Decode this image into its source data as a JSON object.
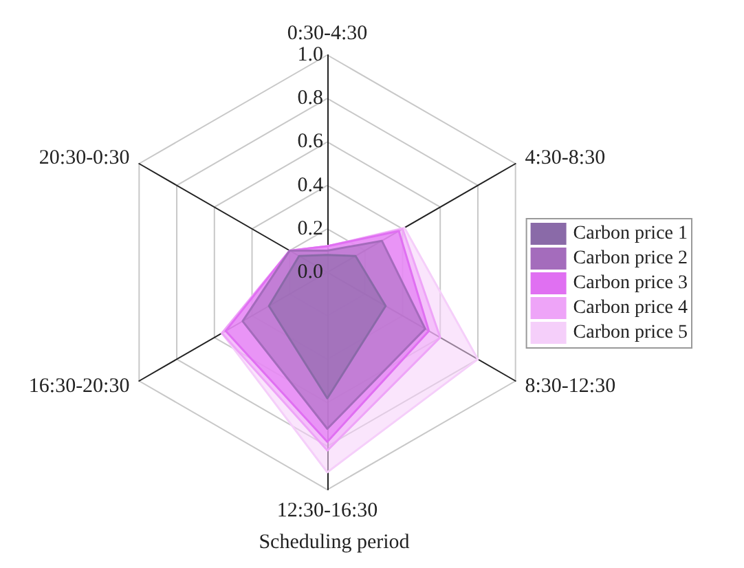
{
  "chart_data": {
    "type": "radar",
    "xlabel": "Scheduling period",
    "categories": [
      "0:30-4:30",
      "4:30-8:30",
      "8:30-12:30",
      "12:30-16:30",
      "16:30-20:30",
      "20:30-0:30"
    ],
    "ylim": [
      0,
      1
    ],
    "yticks": [
      {
        "value": 0,
        "label": "0.0"
      },
      0.2,
      0.4,
      0.6,
      0.8,
      {
        "value": 1,
        "label": "1.0"
      }
    ],
    "grid": true,
    "legend": "right",
    "marker": "none",
    "series": [
      {
        "name": "Carbon price 1",
        "color": "#8a6aa8",
        "values": [
          0.08,
          0.15,
          0.31,
          0.58,
          0.31,
          0.15
        ]
      },
      {
        "name": "Carbon price 2",
        "color": "#a46cbc",
        "values": [
          0.1,
          0.29,
          0.52,
          0.72,
          0.45,
          0.2
        ]
      },
      {
        "name": "Carbon price 3",
        "color": "#e070f2",
        "values": [
          0.12,
          0.38,
          0.54,
          0.78,
          0.54,
          0.2
        ]
      },
      {
        "name": "Carbon price 4",
        "color": "#eea4f8",
        "values": [
          0.12,
          0.4,
          0.6,
          0.82,
          0.56,
          0.2
        ]
      },
      {
        "name": "Carbon price 5",
        "color": "#f5cffa",
        "values": [
          0.12,
          0.41,
          0.8,
          0.92,
          0.56,
          0.2
        ]
      }
    ]
  }
}
